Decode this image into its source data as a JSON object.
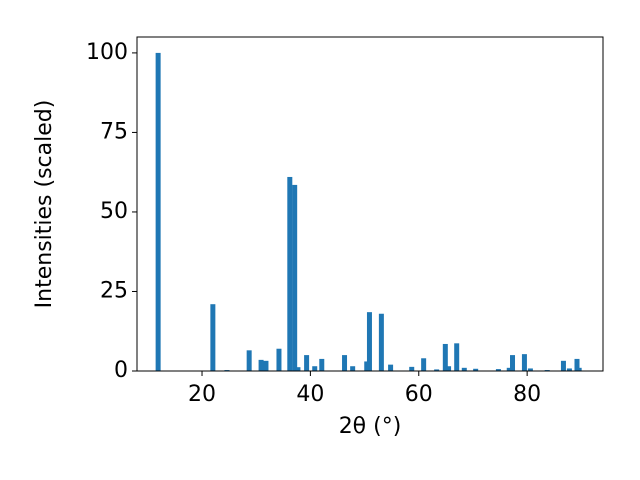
{
  "chart_data": {
    "type": "bar",
    "xlabel": "2θ (°)",
    "ylabel": "Intensities (scaled)",
    "color": "#1f77b4",
    "x": [
      11.9,
      22.0,
      24.6,
      28.7,
      30.9,
      31.8,
      34.2,
      36.2,
      37.1,
      37.7,
      39.3,
      40.8,
      42.1,
      46.3,
      47.8,
      50.4,
      50.9,
      53.1,
      54.8,
      58.7,
      60.9,
      63.3,
      64.9,
      65.5,
      67.0,
      68.4,
      70.5,
      74.7,
      76.7,
      77.3,
      79.5,
      80.6,
      83.7,
      86.7,
      87.8,
      89.2,
      89.6
    ],
    "values": [
      100,
      21,
      0.3,
      6.5,
      3.5,
      3.2,
      7,
      61,
      58.5,
      1.2,
      5,
      1.5,
      3.8,
      5,
      1.5,
      3,
      18.5,
      18,
      2,
      1.3,
      4,
      0.5,
      8.5,
      1.5,
      8.7,
      1,
      0.7,
      0.6,
      1,
      5,
      5.3,
      0.8,
      0.3,
      3.2,
      0.8,
      3.8,
      1
    ],
    "xlim": [
      8,
      94
    ],
    "ylim": [
      0,
      105
    ],
    "xticks": [
      20,
      40,
      60,
      80
    ],
    "yticks": [
      0,
      25,
      50,
      75,
      100
    ]
  }
}
